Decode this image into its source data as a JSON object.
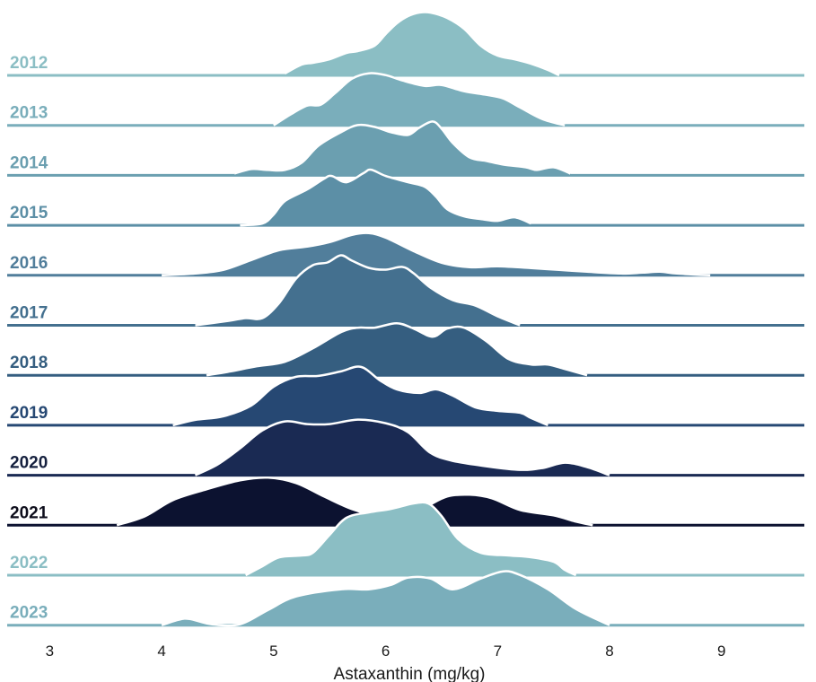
{
  "chart_data": {
    "type": "ridgeline",
    "xlabel": "Astaxanthin (mg/kg)",
    "xlim": [
      2.62,
      9.74
    ],
    "xticks": [
      "3",
      "4",
      "5",
      "6",
      "7",
      "8",
      "9"
    ],
    "series": [
      {
        "name": "2012",
        "color": "#8bbec4",
        "label_color": "#8bbec4",
        "start": 5.1,
        "end": 7.55,
        "curve": [
          [
            5.1,
            0.02
          ],
          [
            5.25,
            0.12
          ],
          [
            5.35,
            0.14
          ],
          [
            5.5,
            0.18
          ],
          [
            5.65,
            0.25
          ],
          [
            5.75,
            0.27
          ],
          [
            5.9,
            0.33
          ],
          [
            6.0,
            0.46
          ],
          [
            6.1,
            0.58
          ],
          [
            6.2,
            0.66
          ],
          [
            6.3,
            0.7
          ],
          [
            6.4,
            0.7
          ],
          [
            6.55,
            0.64
          ],
          [
            6.7,
            0.52
          ],
          [
            6.85,
            0.33
          ],
          [
            7.0,
            0.22
          ],
          [
            7.15,
            0.18
          ],
          [
            7.3,
            0.13
          ],
          [
            7.45,
            0.06
          ],
          [
            7.55,
            0.0
          ]
        ]
      },
      {
        "name": "2013",
        "color": "#7aaebb",
        "label_color": "#7aaebb",
        "start": 5.0,
        "end": 7.6,
        "curve": [
          [
            5.0,
            0.0
          ],
          [
            5.15,
            0.12
          ],
          [
            5.3,
            0.22
          ],
          [
            5.42,
            0.23
          ],
          [
            5.55,
            0.36
          ],
          [
            5.7,
            0.52
          ],
          [
            5.85,
            0.58
          ],
          [
            6.0,
            0.56
          ],
          [
            6.15,
            0.5
          ],
          [
            6.35,
            0.44
          ],
          [
            6.5,
            0.45
          ],
          [
            6.7,
            0.38
          ],
          [
            6.9,
            0.34
          ],
          [
            7.05,
            0.3
          ],
          [
            7.2,
            0.2
          ],
          [
            7.4,
            0.07
          ],
          [
            7.6,
            0.0
          ]
        ]
      },
      {
        "name": "2014",
        "color": "#6b9fb0",
        "label_color": "#6b9fb0",
        "start": 4.65,
        "end": 7.65,
        "curve": [
          [
            4.65,
            0.02
          ],
          [
            4.8,
            0.07
          ],
          [
            4.95,
            0.06
          ],
          [
            5.1,
            0.06
          ],
          [
            5.25,
            0.14
          ],
          [
            5.4,
            0.33
          ],
          [
            5.6,
            0.48
          ],
          [
            5.75,
            0.56
          ],
          [
            5.9,
            0.54
          ],
          [
            6.05,
            0.48
          ],
          [
            6.2,
            0.45
          ],
          [
            6.3,
            0.53
          ],
          [
            6.42,
            0.6
          ],
          [
            6.5,
            0.52
          ],
          [
            6.6,
            0.36
          ],
          [
            6.75,
            0.2
          ],
          [
            6.9,
            0.16
          ],
          [
            7.05,
            0.12
          ],
          [
            7.25,
            0.09
          ],
          [
            7.35,
            0.06
          ],
          [
            7.5,
            0.09
          ],
          [
            7.65,
            0.02
          ]
        ]
      },
      {
        "name": "2015",
        "color": "#5c8fa6",
        "label_color": "#5c8fa6",
        "start": 4.7,
        "end": 7.3,
        "curve": [
          [
            4.7,
            0.0
          ],
          [
            4.9,
            0.02
          ],
          [
            5.0,
            0.12
          ],
          [
            5.1,
            0.27
          ],
          [
            5.3,
            0.4
          ],
          [
            5.45,
            0.52
          ],
          [
            5.52,
            0.55
          ],
          [
            5.65,
            0.48
          ],
          [
            5.8,
            0.58
          ],
          [
            5.87,
            0.62
          ],
          [
            6.0,
            0.55
          ],
          [
            6.2,
            0.48
          ],
          [
            6.35,
            0.43
          ],
          [
            6.45,
            0.32
          ],
          [
            6.55,
            0.18
          ],
          [
            6.7,
            0.1
          ],
          [
            6.85,
            0.07
          ],
          [
            7.0,
            0.05
          ],
          [
            7.15,
            0.09
          ],
          [
            7.3,
            0.02
          ]
        ]
      },
      {
        "name": "2016",
        "color": "#517e9b",
        "label_color": "#517e9b",
        "start": 4.0,
        "end": 8.9,
        "curve": [
          [
            4.0,
            0.0
          ],
          [
            4.3,
            0.02
          ],
          [
            4.55,
            0.06
          ],
          [
            4.8,
            0.17
          ],
          [
            5.05,
            0.28
          ],
          [
            5.3,
            0.32
          ],
          [
            5.5,
            0.37
          ],
          [
            5.7,
            0.45
          ],
          [
            5.85,
            0.47
          ],
          [
            6.0,
            0.42
          ],
          [
            6.25,
            0.27
          ],
          [
            6.5,
            0.14
          ],
          [
            6.75,
            0.09
          ],
          [
            7.0,
            0.1
          ],
          [
            7.3,
            0.08
          ],
          [
            7.55,
            0.06
          ],
          [
            7.8,
            0.04
          ],
          [
            8.1,
            0.02
          ],
          [
            8.3,
            0.03
          ],
          [
            8.45,
            0.04
          ],
          [
            8.6,
            0.02
          ],
          [
            8.9,
            0.0
          ]
        ]
      },
      {
        "name": "2017",
        "color": "#44708f",
        "label_color": "#44708f",
        "start": 4.3,
        "end": 7.2,
        "curve": [
          [
            4.3,
            0.0
          ],
          [
            4.6,
            0.05
          ],
          [
            4.75,
            0.08
          ],
          [
            4.9,
            0.08
          ],
          [
            5.05,
            0.25
          ],
          [
            5.2,
            0.52
          ],
          [
            5.35,
            0.67
          ],
          [
            5.48,
            0.7
          ],
          [
            5.6,
            0.78
          ],
          [
            5.7,
            0.72
          ],
          [
            5.85,
            0.64
          ],
          [
            6.0,
            0.62
          ],
          [
            6.15,
            0.65
          ],
          [
            6.25,
            0.58
          ],
          [
            6.4,
            0.42
          ],
          [
            6.6,
            0.28
          ],
          [
            6.8,
            0.22
          ],
          [
            7.0,
            0.1
          ],
          [
            7.2,
            0.0
          ]
        ]
      },
      {
        "name": "2018",
        "color": "#355e80",
        "label_color": "#355e80",
        "start": 4.4,
        "end": 7.8,
        "curve": [
          [
            4.4,
            0.0
          ],
          [
            4.6,
            0.04
          ],
          [
            4.85,
            0.1
          ],
          [
            5.1,
            0.15
          ],
          [
            5.35,
            0.3
          ],
          [
            5.6,
            0.48
          ],
          [
            5.75,
            0.53
          ],
          [
            5.9,
            0.53
          ],
          [
            6.1,
            0.58
          ],
          [
            6.25,
            0.52
          ],
          [
            6.42,
            0.43
          ],
          [
            6.55,
            0.52
          ],
          [
            6.7,
            0.53
          ],
          [
            6.9,
            0.38
          ],
          [
            7.1,
            0.18
          ],
          [
            7.3,
            0.12
          ],
          [
            7.45,
            0.12
          ],
          [
            7.6,
            0.07
          ],
          [
            7.8,
            0.0
          ]
        ]
      },
      {
        "name": "2019",
        "color": "#264873",
        "label_color": "#264873",
        "start": 4.1,
        "end": 7.45,
        "curve": [
          [
            4.1,
            0.0
          ],
          [
            4.3,
            0.06
          ],
          [
            4.55,
            0.1
          ],
          [
            4.8,
            0.22
          ],
          [
            5.0,
            0.43
          ],
          [
            5.2,
            0.54
          ],
          [
            5.4,
            0.55
          ],
          [
            5.6,
            0.6
          ],
          [
            5.78,
            0.65
          ],
          [
            5.95,
            0.5
          ],
          [
            6.1,
            0.4
          ],
          [
            6.3,
            0.36
          ],
          [
            6.45,
            0.4
          ],
          [
            6.6,
            0.33
          ],
          [
            6.8,
            0.2
          ],
          [
            7.0,
            0.16
          ],
          [
            7.2,
            0.14
          ],
          [
            7.3,
            0.08
          ],
          [
            7.45,
            0.0
          ]
        ]
      },
      {
        "name": "2020",
        "color": "#1a2a53",
        "label_color": "#16213f",
        "start": 4.3,
        "end": 8.0,
        "curve": [
          [
            4.3,
            0.0
          ],
          [
            4.5,
            0.12
          ],
          [
            4.7,
            0.3
          ],
          [
            4.9,
            0.5
          ],
          [
            5.1,
            0.6
          ],
          [
            5.3,
            0.57
          ],
          [
            5.5,
            0.57
          ],
          [
            5.75,
            0.62
          ],
          [
            6.0,
            0.58
          ],
          [
            6.2,
            0.48
          ],
          [
            6.4,
            0.25
          ],
          [
            6.6,
            0.16
          ],
          [
            6.9,
            0.1
          ],
          [
            7.2,
            0.06
          ],
          [
            7.4,
            0.08
          ],
          [
            7.6,
            0.14
          ],
          [
            7.8,
            0.09
          ],
          [
            8.0,
            0.0
          ]
        ]
      },
      {
        "name": "2021",
        "color": "#0c1230",
        "label_color": "#0e0e1c",
        "start": 3.6,
        "end": 7.85,
        "curve": [
          [
            3.6,
            0.0
          ],
          [
            3.85,
            0.1
          ],
          [
            4.1,
            0.28
          ],
          [
            4.4,
            0.4
          ],
          [
            4.7,
            0.5
          ],
          [
            4.95,
            0.53
          ],
          [
            5.2,
            0.47
          ],
          [
            5.45,
            0.32
          ],
          [
            5.7,
            0.18
          ],
          [
            5.95,
            0.1
          ],
          [
            6.15,
            0.1
          ],
          [
            6.35,
            0.2
          ],
          [
            6.55,
            0.32
          ],
          [
            6.75,
            0.34
          ],
          [
            6.95,
            0.3
          ],
          [
            7.2,
            0.17
          ],
          [
            7.5,
            0.11
          ],
          [
            7.7,
            0.04
          ],
          [
            7.85,
            0.0
          ]
        ]
      },
      {
        "name": "2022",
        "color": "#8bbec4",
        "label_color": "#8bbec4",
        "start": 4.75,
        "end": 7.7,
        "curve": [
          [
            4.75,
            0.0
          ],
          [
            4.9,
            0.1
          ],
          [
            5.05,
            0.2
          ],
          [
            5.25,
            0.22
          ],
          [
            5.35,
            0.25
          ],
          [
            5.5,
            0.45
          ],
          [
            5.65,
            0.64
          ],
          [
            5.85,
            0.7
          ],
          [
            6.05,
            0.74
          ],
          [
            6.25,
            0.8
          ],
          [
            6.38,
            0.8
          ],
          [
            6.5,
            0.66
          ],
          [
            6.65,
            0.4
          ],
          [
            6.85,
            0.25
          ],
          [
            7.1,
            0.22
          ],
          [
            7.3,
            0.2
          ],
          [
            7.5,
            0.15
          ],
          [
            7.6,
            0.06
          ],
          [
            7.7,
            0.0
          ]
        ]
      },
      {
        "name": "2023",
        "color": "#7aaebb",
        "label_color": "#7aaebb",
        "start": 4.0,
        "end": 8.0,
        "curve": [
          [
            4.0,
            0.0
          ],
          [
            4.15,
            0.06
          ],
          [
            4.25,
            0.07
          ],
          [
            4.45,
            0.01
          ],
          [
            4.7,
            0.01
          ],
          [
            4.95,
            0.17
          ],
          [
            5.2,
            0.32
          ],
          [
            5.6,
            0.4
          ],
          [
            5.85,
            0.4
          ],
          [
            6.05,
            0.45
          ],
          [
            6.2,
            0.53
          ],
          [
            6.4,
            0.52
          ],
          [
            6.6,
            0.4
          ],
          [
            6.85,
            0.52
          ],
          [
            7.05,
            0.6
          ],
          [
            7.2,
            0.56
          ],
          [
            7.45,
            0.4
          ],
          [
            7.7,
            0.18
          ],
          [
            8.0,
            0.0
          ]
        ]
      }
    ]
  }
}
